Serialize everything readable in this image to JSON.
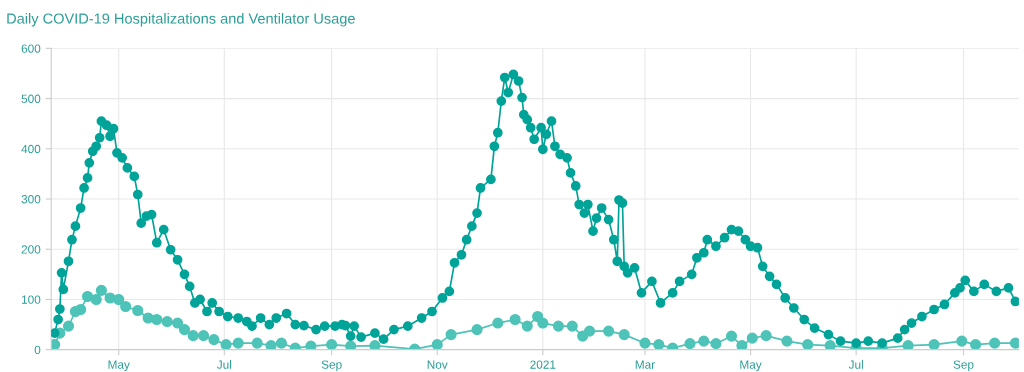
{
  "chart_data": {
    "type": "line",
    "title": "Daily COVID-19 Hospitalizations and Ventilator Usage",
    "xlim": [
      "2020-03-23",
      "2021-10-03"
    ],
    "ylim": [
      0,
      600
    ],
    "yticks": [
      0,
      100,
      200,
      300,
      400,
      500,
      600
    ],
    "xticks": [
      {
        "value": "2020-05-01",
        "label": "May"
      },
      {
        "value": "2020-07-01",
        "label": "Jul"
      },
      {
        "value": "2020-09-01",
        "label": "Sep"
      },
      {
        "value": "2020-11-01",
        "label": "Nov"
      },
      {
        "value": "2021-01-01",
        "label": "2021"
      },
      {
        "value": "2021-03-01",
        "label": "Mar"
      },
      {
        "value": "2021-05-01",
        "label": "May"
      },
      {
        "value": "2021-07-01",
        "label": "Jul"
      },
      {
        "value": "2021-09-01",
        "label": "Sep"
      }
    ],
    "grid": true,
    "marker": "circle",
    "line_style": "solid",
    "series": [
      {
        "color": "#00a398",
        "x": [
          "2020-03-25",
          "2020-03-27",
          "2020-03-28",
          "2020-03-29",
          "2020-03-30",
          "2020-04-02",
          "2020-04-04",
          "2020-04-06",
          "2020-04-09",
          "2020-04-11",
          "2020-04-13",
          "2020-04-14",
          "2020-04-16",
          "2020-04-18",
          "2020-04-20",
          "2020-04-21",
          "2020-04-24",
          "2020-04-26",
          "2020-04-28",
          "2020-04-30",
          "2020-05-03",
          "2020-05-06",
          "2020-05-10",
          "2020-05-12",
          "2020-05-14",
          "2020-05-17",
          "2020-05-20",
          "2020-05-23",
          "2020-05-27",
          "2020-05-31",
          "2020-06-04",
          "2020-06-08",
          "2020-06-11",
          "2020-06-14",
          "2020-06-17",
          "2020-06-21",
          "2020-06-24",
          "2020-06-28",
          "2020-07-03",
          "2020-07-09",
          "2020-07-14",
          "2020-07-17",
          "2020-07-22",
          "2020-07-27",
          "2020-07-31",
          "2020-08-06",
          "2020-08-11",
          "2020-08-16",
          "2020-08-23",
          "2020-08-28",
          "2020-09-03",
          "2020-09-07",
          "2020-09-09",
          "2020-09-12",
          "2020-09-14",
          "2020-09-18",
          "2020-09-26",
          "2020-10-01",
          "2020-10-07",
          "2020-10-15",
          "2020-10-23",
          "2020-10-29",
          "2020-11-04",
          "2020-11-08",
          "2020-11-11",
          "2020-11-15",
          "2020-11-18",
          "2020-11-21",
          "2020-11-24",
          "2020-11-26",
          "2020-12-02",
          "2020-12-04",
          "2020-12-06",
          "2020-12-08",
          "2020-12-10",
          "2020-12-12",
          "2020-12-15",
          "2020-12-18",
          "2020-12-20",
          "2020-12-21",
          "2020-12-23",
          "2020-12-25",
          "2020-12-27",
          "2020-12-31",
          "2021-01-01",
          "2021-01-03",
          "2021-01-06",
          "2021-01-08",
          "2021-01-11",
          "2021-01-15",
          "2021-01-17",
          "2021-01-20",
          "2021-01-22",
          "2021-01-25",
          "2021-01-27",
          "2021-01-30",
          "2021-02-01",
          "2021-02-04",
          "2021-02-08",
          "2021-02-11",
          "2021-02-13",
          "2021-02-14",
          "2021-02-16",
          "2021-02-17",
          "2021-02-19",
          "2021-02-23",
          "2021-02-27",
          "2021-03-05",
          "2021-03-10",
          "2021-03-17",
          "2021-03-21",
          "2021-03-28",
          "2021-03-31",
          "2021-04-04",
          "2021-04-06",
          "2021-04-11",
          "2021-04-16",
          "2021-04-20",
          "2021-04-24",
          "2021-04-28",
          "2021-05-01",
          "2021-05-05",
          "2021-05-08",
          "2021-05-12",
          "2021-05-16",
          "2021-05-21",
          "2021-05-26",
          "2021-06-01",
          "2021-06-07",
          "2021-06-15",
          "2021-06-22",
          "2021-07-01",
          "2021-07-08",
          "2021-07-16",
          "2021-07-25",
          "2021-07-29",
          "2021-08-02",
          "2021-08-08",
          "2021-08-15",
          "2021-08-21",
          "2021-08-27",
          "2021-08-30",
          "2021-09-02",
          "2021-09-07",
          "2021-09-13",
          "2021-09-20",
          "2021-09-27",
          "2021-10-01"
        ],
        "values": [
          33,
          60,
          81,
          153,
          120,
          176,
          219,
          246,
          282,
          322,
          342,
          372,
          395,
          405,
          422,
          455,
          447,
          425,
          440,
          392,
          382,
          362,
          345,
          309,
          252,
          266,
          269,
          213,
          239,
          199,
          179,
          150,
          126,
          93,
          100,
          76,
          93,
          76,
          66,
          63,
          56,
          47,
          63,
          50,
          63,
          72,
          50,
          48,
          40,
          47,
          47,
          50,
          48,
          27,
          47,
          25,
          33,
          21,
          40,
          47,
          63,
          76,
          103,
          116,
          173,
          189,
          219,
          246,
          272,
          322,
          339,
          405,
          432,
          495,
          542,
          512,
          548,
          535,
          502,
          468,
          458,
          442,
          419,
          442,
          399,
          429,
          455,
          405,
          389,
          382,
          352,
          326,
          289,
          272,
          289,
          236,
          262,
          282,
          259,
          219,
          176,
          298,
          292,
          166,
          153,
          163,
          113,
          136,
          93,
          113,
          136,
          150,
          183,
          193,
          219,
          206,
          223,
          239,
          236,
          219,
          206,
          203,
          166,
          146,
          130,
          103,
          83,
          60,
          43,
          30,
          17,
          13,
          17,
          13,
          23,
          40,
          53,
          66,
          80,
          90,
          113,
          123,
          138,
          116,
          130,
          116,
          123,
          96
        ]
      },
      {
        "color": "#4ec3b7",
        "x": [
          "2020-03-25",
          "2020-03-28",
          "2020-04-02",
          "2020-04-06",
          "2020-04-09",
          "2020-04-13",
          "2020-04-18",
          "2020-04-21",
          "2020-04-26",
          "2020-05-01",
          "2020-05-05",
          "2020-05-12",
          "2020-05-18",
          "2020-05-23",
          "2020-05-29",
          "2020-06-04",
          "2020-06-08",
          "2020-06-13",
          "2020-06-19",
          "2020-06-25",
          "2020-07-02",
          "2020-07-09",
          "2020-07-20",
          "2020-07-28",
          "2020-08-03",
          "2020-08-11",
          "2020-08-20",
          "2020-09-01",
          "2020-09-12",
          "2020-09-26",
          "2020-10-19",
          "2020-11-01",
          "2020-11-09",
          "2020-11-24",
          "2020-12-06",
          "2020-12-16",
          "2020-12-23",
          "2020-12-29",
          "2021-01-01",
          "2021-01-10",
          "2021-01-18",
          "2021-01-24",
          "2021-01-28",
          "2021-02-08",
          "2021-02-17",
          "2021-03-01",
          "2021-03-09",
          "2021-03-17",
          "2021-03-27",
          "2021-04-04",
          "2021-04-11",
          "2021-04-20",
          "2021-04-26",
          "2021-05-02",
          "2021-05-10",
          "2021-05-22",
          "2021-06-03",
          "2021-06-16",
          "2021-07-01",
          "2021-07-16",
          "2021-07-31",
          "2021-08-15",
          "2021-08-31",
          "2021-09-08",
          "2021-09-19",
          "2021-10-01"
        ],
        "values": [
          10,
          33,
          47,
          76,
          80,
          106,
          100,
          118,
          103,
          100,
          86,
          78,
          63,
          60,
          56,
          53,
          40,
          28,
          28,
          20,
          10,
          13,
          13,
          8,
          13,
          3,
          7,
          10,
          7,
          8,
          1,
          10,
          30,
          40,
          53,
          60,
          47,
          66,
          53,
          47,
          47,
          27,
          37,
          37,
          30,
          13,
          10,
          3,
          12,
          17,
          12,
          27,
          8,
          23,
          28,
          17,
          10,
          8,
          3,
          3,
          8,
          10,
          17,
          10,
          13,
          13
        ]
      }
    ]
  }
}
